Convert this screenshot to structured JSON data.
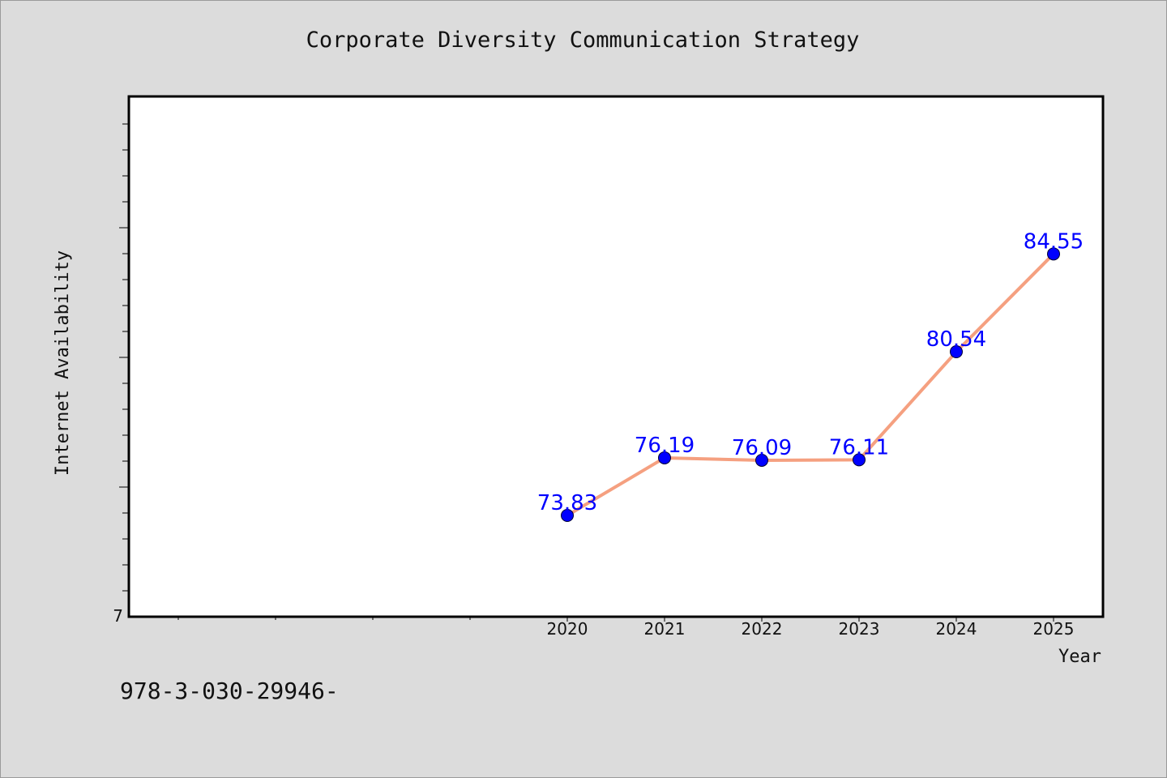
{
  "chart_data": {
    "type": "line",
    "title": "Corporate Diversity Communication Strategy",
    "xlabel": "Year",
    "ylabel": "Internet Availability",
    "x": [
      "2020",
      "2021",
      "2022",
      "2023",
      "2024",
      "2025"
    ],
    "series": [
      {
        "values": [
          73.83,
          76.19,
          76.09,
          76.11,
          80.54,
          84.55
        ]
      }
    ],
    "data_labels": [
      "73.83",
      "76.19",
      "76.09",
      "76.11",
      "80.54",
      "84.55"
    ],
    "y_tick_labels": [
      "7"
    ],
    "line_color": "#f5a080",
    "marker_color": "#0000ff",
    "label_color": "#0000ff",
    "grid": false,
    "legend": "none"
  },
  "footer": {
    "isbn": "978-3-030-29946-"
  }
}
